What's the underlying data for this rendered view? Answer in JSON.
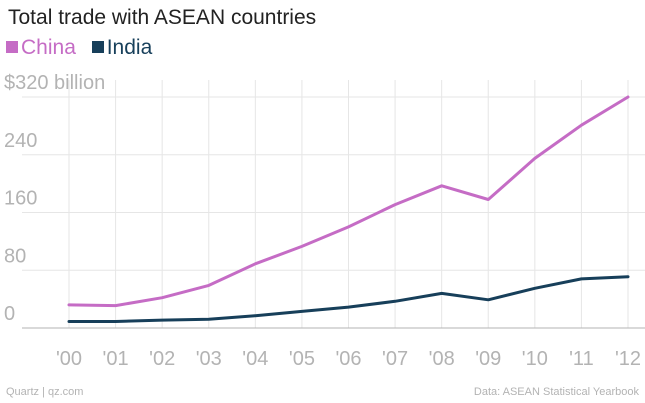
{
  "chart_data": {
    "type": "line",
    "title": "Total trade with ASEAN countries",
    "xlabel": "",
    "ylabel": "",
    "x_labels": [
      "'00",
      "'01",
      "'02",
      "'03",
      "'04",
      "'05",
      "'06",
      "'07",
      "'08",
      "'09",
      "'10",
      "'11",
      "'12"
    ],
    "y_ticks": [
      0,
      80,
      160,
      240,
      320
    ],
    "y_tick_labels": [
      "0",
      "80",
      "160",
      "240",
      "$320 billion"
    ],
    "ylim": [
      0,
      320
    ],
    "grid": true,
    "legend_position": "top-left",
    "series": [
      {
        "name": "China",
        "color": "#c56cc5",
        "values": [
          32,
          31,
          42,
          59,
          89,
          113,
          140,
          171,
          197,
          178,
          235,
          281,
          320
        ]
      },
      {
        "name": "India",
        "color": "#173f5a",
        "values": [
          9,
          9,
          11,
          12,
          17,
          23,
          29,
          37,
          48,
          39,
          55,
          68,
          71
        ]
      }
    ]
  },
  "footer": {
    "source_left": "Quartz | qz.com",
    "source_right": "Data: ASEAN Statistical Yearbook"
  },
  "colors": {
    "grid": "#e6e6e6",
    "baseline": "#b3b3b3",
    "tick_text": "#b3b3b3"
  }
}
